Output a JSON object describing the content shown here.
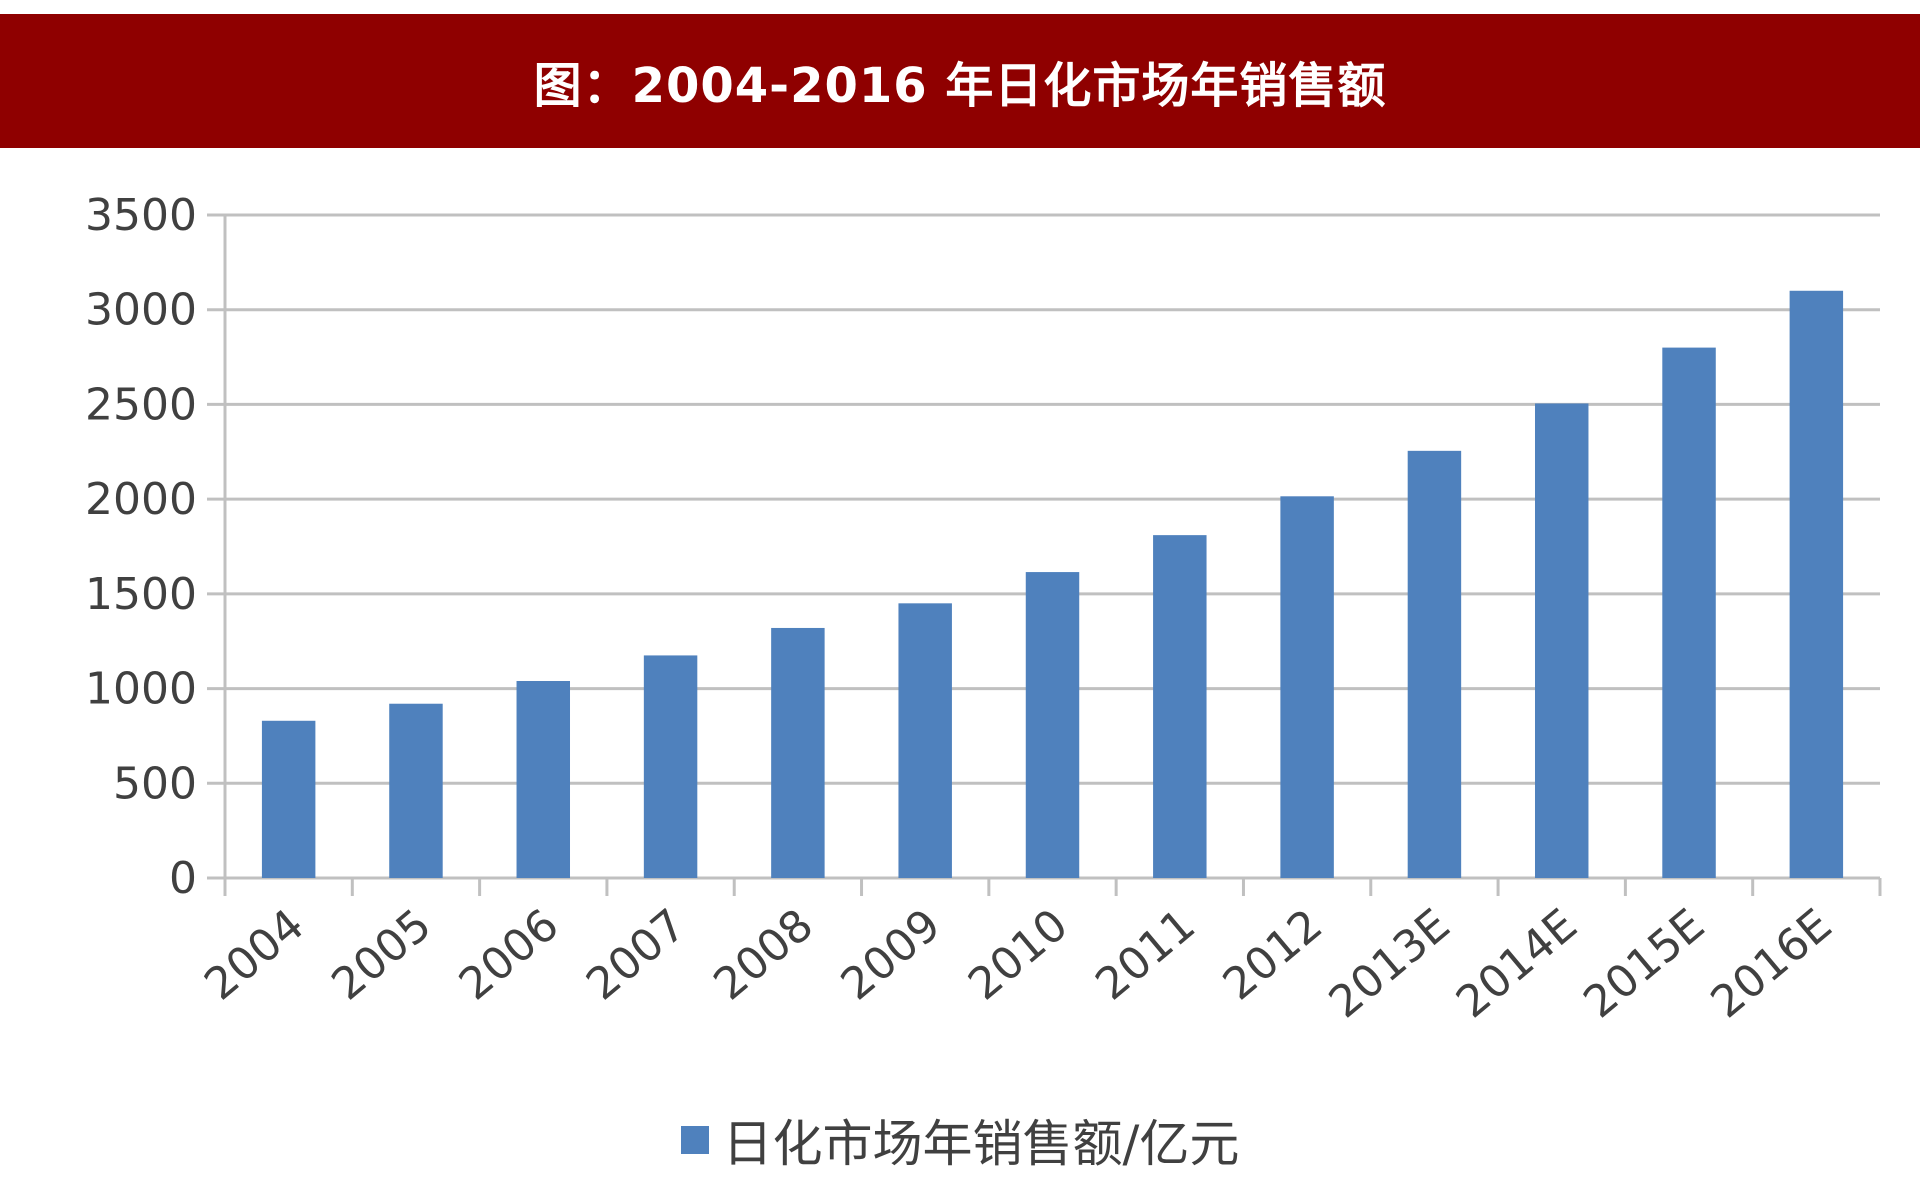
{
  "title": "图：2004-2016 年日化市场年销售额",
  "colors": {
    "title_bg": "#8f0000",
    "bar": "#4f81bd",
    "grid": "#c0c0c0",
    "text": "#404040"
  },
  "chart_data": {
    "type": "bar",
    "categories": [
      "2004",
      "2005",
      "2006",
      "2007",
      "2008",
      "2009",
      "2010",
      "2011",
      "2012",
      "2013E",
      "2014E",
      "2015E",
      "2016E"
    ],
    "series": [
      {
        "name": "日化市场年销售额/亿元",
        "values": [
          830,
          920,
          1040,
          1175,
          1320,
          1450,
          1615,
          1810,
          2015,
          2255,
          2505,
          2800,
          3100
        ]
      }
    ],
    "ylim": [
      0,
      3500
    ],
    "yticks": [
      0,
      500,
      1000,
      1500,
      2000,
      2500,
      3000,
      3500
    ],
    "grid": true,
    "legend_position": "bottom"
  }
}
